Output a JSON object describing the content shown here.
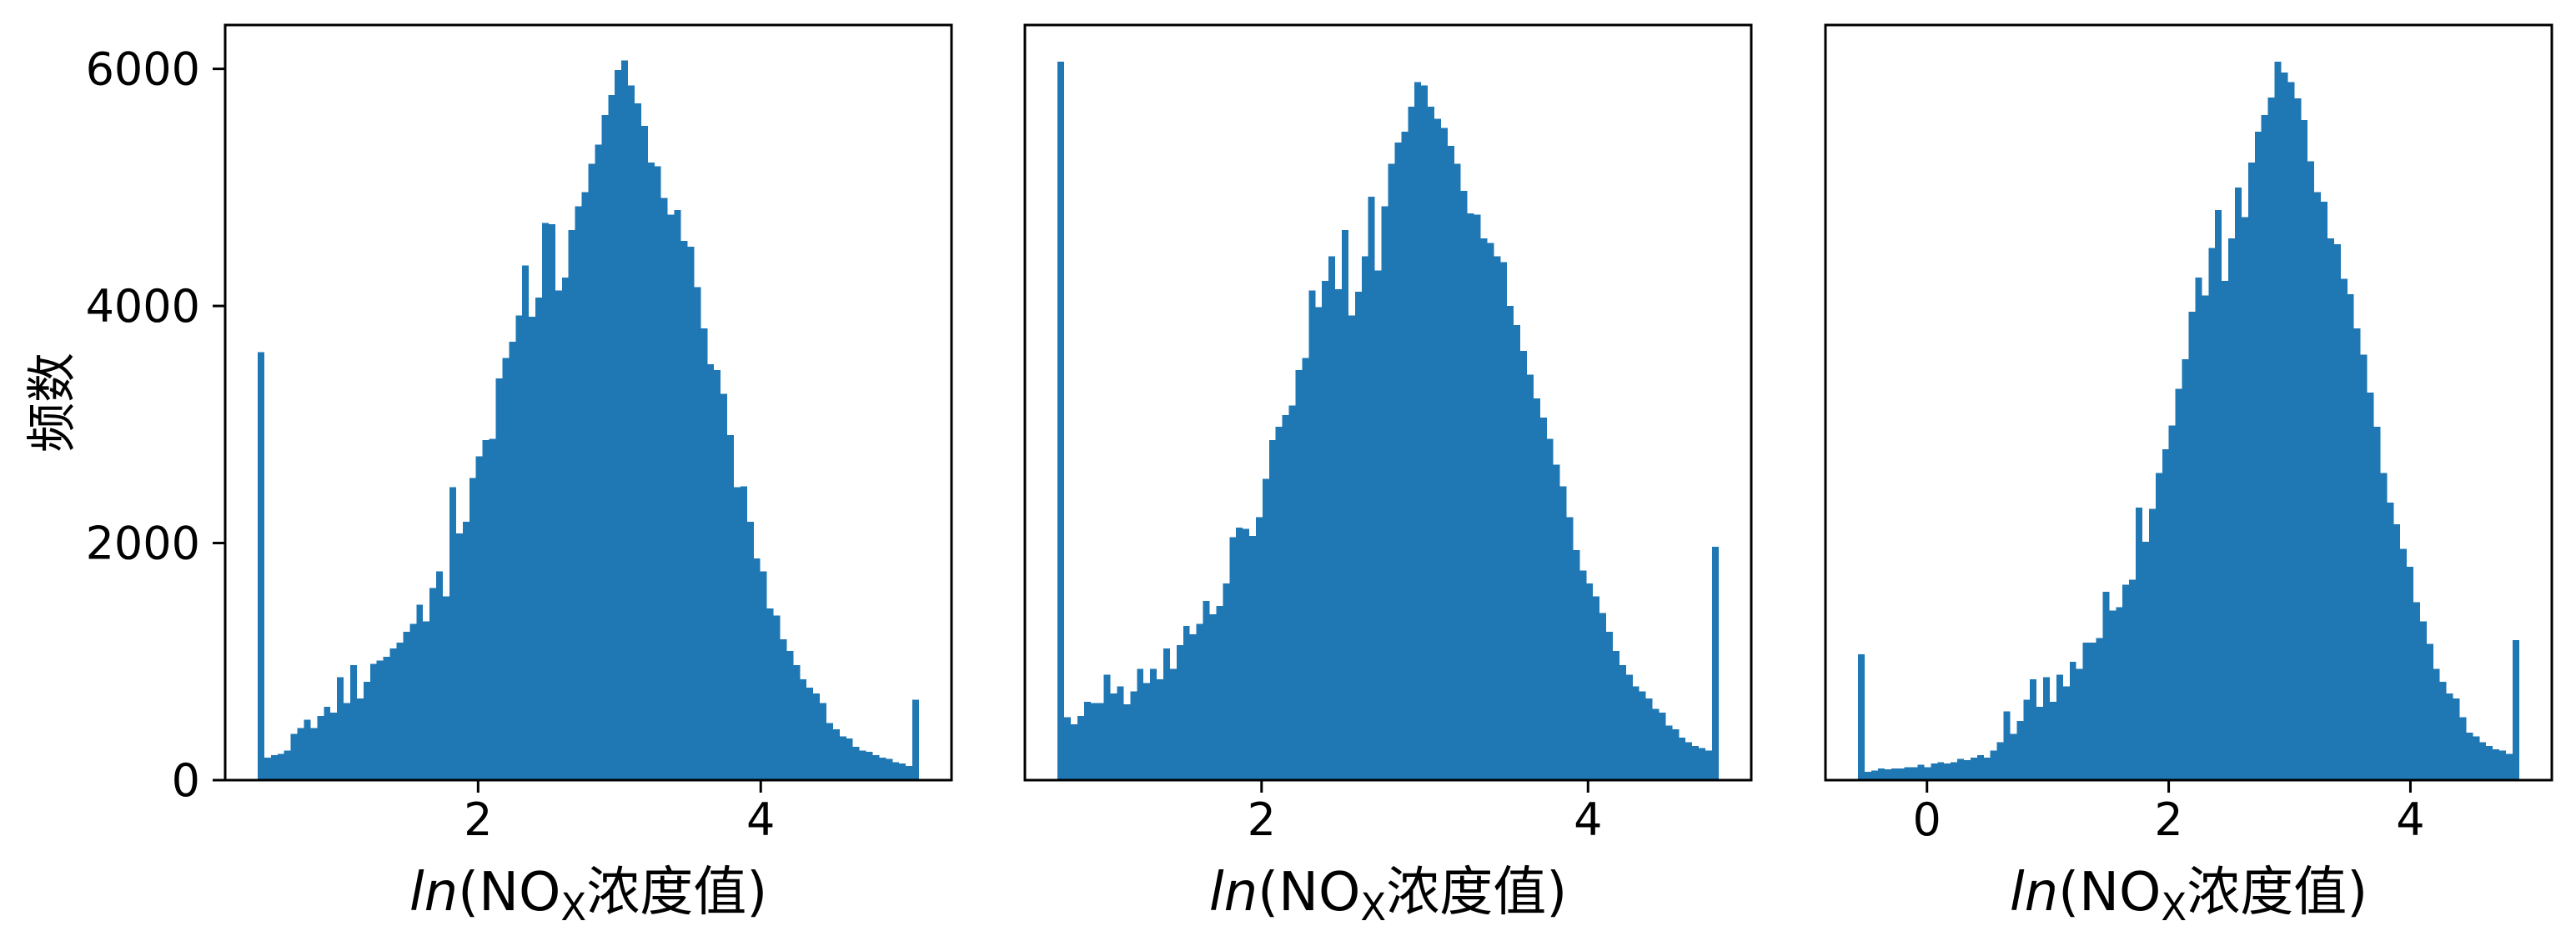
{
  "chart_data": [
    {
      "type": "bar",
      "bin_range": [
        0.44,
        5.12
      ],
      "values": [
        3610,
        190,
        210,
        220,
        250,
        390,
        440,
        510,
        440,
        540,
        620,
        570,
        870,
        650,
        970,
        690,
        830,
        980,
        1010,
        1040,
        1110,
        1160,
        1250,
        1320,
        1480,
        1340,
        1620,
        1760,
        1550,
        2470,
        2080,
        2180,
        2550,
        2730,
        2870,
        2880,
        3390,
        3560,
        3700,
        3920,
        4340,
        3910,
        4070,
        4700,
        4690,
        4130,
        4240,
        4640,
        4840,
        4960,
        5200,
        5360,
        5610,
        5780,
        5990,
        6070,
        5860,
        5710,
        5520,
        5210,
        5180,
        4910,
        4770,
        4810,
        4550,
        4500,
        4160,
        3810,
        3510,
        3460,
        3260,
        2910,
        2470,
        2480,
        2180,
        1870,
        1760,
        1450,
        1390,
        1190,
        1090,
        970,
        850,
        780,
        730,
        650,
        480,
        430,
        370,
        350,
        280,
        250,
        240,
        210,
        190,
        180,
        150,
        140,
        120,
        680
      ],
      "color": "#1f77b4",
      "xlabel": {
        "func": "ln",
        "prefix": "(NO",
        "sub": "X",
        "suffix": "浓度值)"
      },
      "ylabel": "频数",
      "xticks": [
        2,
        4
      ],
      "yticks": [
        0,
        2000,
        4000,
        6000
      ],
      "xlim": [
        0.21,
        5.35
      ],
      "ylim": [
        0,
        6370
      ],
      "grid": false
    },
    {
      "type": "bar",
      "bin_range": [
        0.75,
        4.8
      ],
      "values": [
        6060,
        530,
        470,
        540,
        660,
        650,
        650,
        890,
        730,
        790,
        640,
        750,
        940,
        820,
        940,
        850,
        1110,
        940,
        1140,
        1300,
        1230,
        1320,
        1510,
        1400,
        1470,
        1660,
        2050,
        2130,
        2120,
        2060,
        2220,
        2540,
        2870,
        2980,
        3080,
        3160,
        3460,
        3560,
        4130,
        3990,
        4210,
        4420,
        4140,
        4640,
        3920,
        4120,
        4420,
        4920,
        4300,
        4840,
        5200,
        5380,
        5470,
        5680,
        5890,
        5860,
        5680,
        5580,
        5500,
        5350,
        5200,
        4970,
        4780,
        4770,
        4570,
        4530,
        4420,
        4370,
        4000,
        3840,
        3620,
        3420,
        3220,
        3060,
        2880,
        2660,
        2480,
        2220,
        1940,
        1770,
        1660,
        1550,
        1410,
        1250,
        1090,
        970,
        890,
        790,
        750,
        690,
        600,
        570,
        460,
        430,
        360,
        320,
        290,
        270,
        250,
        1970
      ],
      "color": "#1f77b4",
      "xlabel": {
        "func": "ln",
        "prefix": "(NO",
        "sub": "X",
        "suffix": "浓度值)"
      },
      "xticks": [
        2,
        4
      ],
      "yticks": [],
      "xlim": [
        0.55,
        5.0
      ],
      "ylim": [
        0,
        6370
      ],
      "grid": false
    },
    {
      "type": "bar",
      "bin_range": [
        -0.57,
        4.9
      ],
      "values": [
        1060,
        70,
        80,
        100,
        90,
        100,
        100,
        110,
        110,
        130,
        110,
        140,
        150,
        140,
        150,
        180,
        170,
        190,
        210,
        190,
        250,
        320,
        580,
        390,
        500,
        680,
        850,
        620,
        870,
        660,
        890,
        790,
        1000,
        940,
        1160,
        1160,
        1200,
        1590,
        1430,
        1460,
        1650,
        1690,
        2300,
        2010,
        2290,
        2590,
        2790,
        2990,
        3300,
        3550,
        3950,
        4240,
        4090,
        4490,
        4810,
        4210,
        4570,
        5000,
        4750,
        5210,
        5470,
        5610,
        5760,
        6060,
        5970,
        5890,
        5750,
        5570,
        5220,
        4960,
        4880,
        4570,
        4520,
        4230,
        4100,
        3810,
        3590,
        3270,
        2980,
        2590,
        2340,
        2160,
        1950,
        1800,
        1500,
        1340,
        1150,
        940,
        830,
        730,
        690,
        530,
        400,
        370,
        320,
        290,
        260,
        250,
        220,
        1180
      ],
      "color": "#1f77b4",
      "xlabel": {
        "func": "ln",
        "prefix": "(NO",
        "sub": "X",
        "suffix": "浓度值)"
      },
      "xticks": [
        0,
        2,
        4
      ],
      "yticks": [],
      "xlim": [
        -0.84,
        5.17
      ],
      "ylim": [
        0,
        6370
      ],
      "grid": false
    }
  ]
}
